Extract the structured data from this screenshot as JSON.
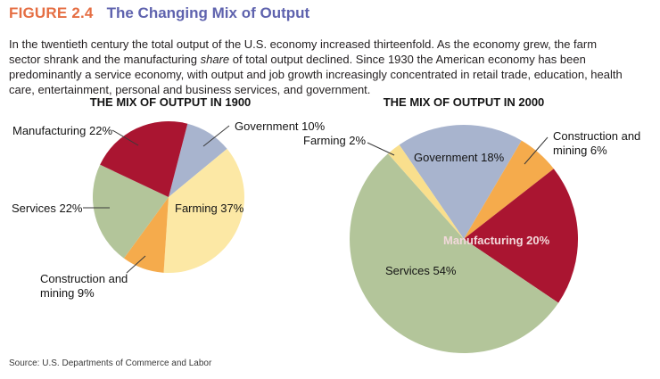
{
  "figure": {
    "number": "FIGURE 2.4",
    "title": "The Changing Mix of Output",
    "description": {
      "pre": "In the twentieth century the total output of the U.S. economy increased thirteenfold. As the economy grew, the farm sector shrank and the manufacturing ",
      "italic": "share",
      "post": " of total output declined. Since 1930 the American economy has been predominantly a service economy, with output and job growth increasingly concentrated in retail trade, education, health care, entertainment, personal and business services, and government."
    },
    "source": "Source: U.S. Departments of Commerce and Labor"
  },
  "colors": {
    "figure_number": "#E56E43",
    "figure_title": "#5F63AE",
    "body_text": "#231F20",
    "chart_title_text": "#141414",
    "label_text": "#141414",
    "label_on_red": "#F2D9DB",
    "leader_line": "#3A3A3A",
    "crimson": "#AA1531",
    "blue_gray": "#A8B4CE",
    "pale_yellow": "#FCE8A5",
    "deep_yellow": "#F9DF8D",
    "orange": "#F5AB4C",
    "green": "#B3C59A"
  },
  "chart_data": [
    {
      "type": "pie",
      "title": "THE MIX OF OUTPUT IN 1900",
      "start_angle_deg": 14.5,
      "legend_position": "callout-labels",
      "slices": [
        {
          "label": "Government",
          "value": 10,
          "display": "Government 10%",
          "color": "#A8B4CE"
        },
        {
          "label": "Farming",
          "value": 37,
          "display": "Farming 37%",
          "color": "#FCE8A5"
        },
        {
          "label": "Construction and mining",
          "value": 9,
          "display": "Construction and mining 9%",
          "color": "#F5AB4C"
        },
        {
          "label": "Services",
          "value": 22,
          "display": "Services 22%",
          "color": "#B3C59A"
        },
        {
          "label": "Manufacturing",
          "value": 22,
          "display": "Manufacturing 22%",
          "color": "#AA1531"
        }
      ]
    },
    {
      "type": "pie",
      "title": "THE MIX OF OUTPUT IN 2000",
      "start_angle_deg": -34.4,
      "legend_position": "callout-labels",
      "slices": [
        {
          "label": "Government",
          "value": 18,
          "display": "Government 18%",
          "color": "#A8B4CE"
        },
        {
          "label": "Construction and mining",
          "value": 6,
          "display": "Construction and mining 6%",
          "color": "#F5AB4C"
        },
        {
          "label": "Manufacturing",
          "value": 20,
          "display": "Manufacturing 20%",
          "color": "#AA1531"
        },
        {
          "label": "Services",
          "value": 54,
          "display": "Services 54%",
          "color": "#B3C59A"
        },
        {
          "label": "Farming",
          "value": 2,
          "display": "Farming 2%",
          "color": "#F9DF8D"
        }
      ]
    }
  ]
}
